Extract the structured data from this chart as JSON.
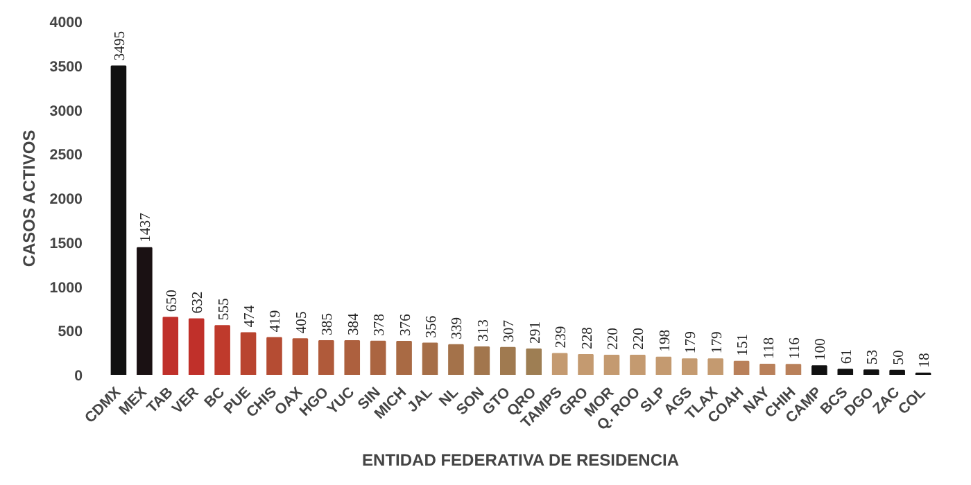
{
  "chart_data": {
    "type": "bar",
    "xlabel": "ENTIDAD FEDERATIVA DE RESIDENCIA",
    "ylabel": "CASOS ACTIVOS",
    "categories": [
      "CDMX",
      "MEX",
      "TAB",
      "VER",
      "BC",
      "PUE",
      "CHIS",
      "OAX",
      "HGO",
      "YUC",
      "SIN",
      "MICH",
      "JAL",
      "NL",
      "SON",
      "GTO",
      "QRO",
      "TAMPS",
      "GRO",
      "MOR",
      "Q. ROO",
      "SLP",
      "AGS",
      "TLAX",
      "COAH",
      "NAY",
      "CHIH",
      "CAMP",
      "BCS",
      "DGO",
      "ZAC",
      "COL"
    ],
    "values": [
      3495,
      1437,
      650,
      632,
      555,
      474,
      419,
      405,
      385,
      384,
      378,
      376,
      356,
      339,
      313,
      307,
      291,
      239,
      228,
      220,
      220,
      198,
      179,
      179,
      151,
      118,
      116,
      100,
      61,
      53,
      50,
      18
    ],
    "colors": [
      "#111111",
      "#1a1113",
      "#c0302a",
      "#c0302a",
      "#bf3a2c",
      "#b9442f",
      "#b54c33",
      "#b35436",
      "#b05a3a",
      "#ad603e",
      "#ab6541",
      "#a96a44",
      "#a66e47",
      "#a4724a",
      "#a2764d",
      "#a07a50",
      "#9e7e53",
      "#c49a70",
      "#c49a70",
      "#c49a70",
      "#c49a70",
      "#c49a70",
      "#c49a70",
      "#c49a70",
      "#b9805a",
      "#b9805a",
      "#b9805a",
      "#111111",
      "#111111",
      "#111111",
      "#111111",
      "#111111"
    ],
    "ylim": [
      0,
      4000
    ],
    "yticks": [
      0,
      500,
      1000,
      1500,
      2000,
      2500,
      3000,
      3500,
      4000
    ],
    "data_labels": true,
    "grid": false
  }
}
